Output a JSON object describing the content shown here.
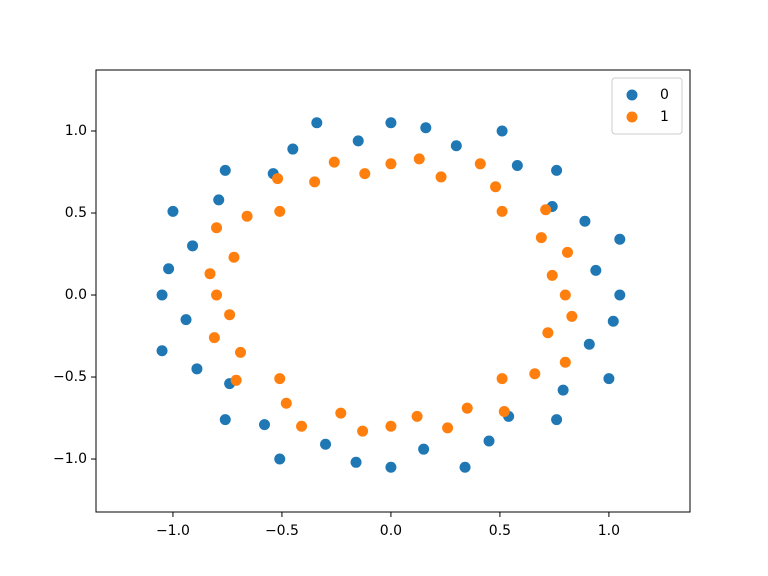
{
  "chart_data": {
    "type": "scatter",
    "xlim": [
      -1.353,
      1.372
    ],
    "ylim": [
      -1.323,
      1.372
    ],
    "xticks": [
      {
        "value": -1.0,
        "label": "−1.0"
      },
      {
        "value": -0.5,
        "label": "−0.5"
      },
      {
        "value": 0.0,
        "label": "0.0"
      },
      {
        "value": 0.5,
        "label": "0.5"
      },
      {
        "value": 1.0,
        "label": "1.0"
      }
    ],
    "yticks": [
      {
        "value": -1.0,
        "label": "−1.0"
      },
      {
        "value": -0.5,
        "label": "−0.5"
      },
      {
        "value": 0.0,
        "label": "0.0"
      },
      {
        "value": 0.5,
        "label": "0.5"
      },
      {
        "value": 1.0,
        "label": "1.0"
      }
    ],
    "grid": false,
    "legend": "upper right",
    "series": [
      {
        "name": "0",
        "color": "#1f77b4",
        "x": [
          1.05,
          0.94,
          1.05,
          0.89,
          0.74,
          0.76,
          0.58,
          0.51,
          0.3,
          0.16,
          0,
          -0.15,
          -0.34,
          -0.45,
          -0.54,
          -0.76,
          -0.79,
          -1.0,
          -0.91,
          -1.02,
          -1.05,
          -0.94,
          -1.05,
          -0.89,
          -0.74,
          -0.76,
          -0.58,
          -0.51,
          -0.3,
          -0.16,
          0,
          0.15,
          0.34,
          0.45,
          0.54,
          0.76,
          0.79,
          1.0,
          0.91,
          1.02
        ],
        "values": [
          0,
          0.15,
          0.34,
          0.45,
          0.54,
          0.76,
          0.79,
          1.0,
          0.91,
          1.02,
          1.05,
          0.94,
          1.05,
          0.89,
          0.74,
          0.76,
          0.58,
          0.51,
          0.3,
          0.16,
          0,
          -0.15,
          -0.34,
          -0.45,
          -0.54,
          -0.76,
          -0.79,
          -1.0,
          -0.91,
          -1.02,
          -1.05,
          -0.94,
          -1.05,
          -0.89,
          -0.74,
          -0.76,
          -0.58,
          -0.51,
          -0.3,
          -0.16
        ]
      },
      {
        "name": "1",
        "color": "#ff7f0e",
        "x": [
          0.8,
          0.74,
          0.81,
          0.69,
          0.71,
          0.51,
          0.48,
          0.41,
          0.23,
          0.13,
          0,
          -0.12,
          -0.26,
          -0.35,
          -0.52,
          -0.51,
          -0.66,
          -0.8,
          -0.72,
          -0.83,
          -0.8,
          -0.74,
          -0.81,
          -0.69,
          -0.71,
          -0.51,
          -0.48,
          -0.41,
          -0.23,
          -0.13,
          0,
          0.12,
          0.26,
          0.35,
          0.52,
          0.51,
          0.66,
          0.8,
          0.72,
          0.83
        ],
        "values": [
          0,
          0.12,
          0.26,
          0.35,
          0.52,
          0.51,
          0.66,
          0.8,
          0.72,
          0.83,
          0.8,
          0.74,
          0.81,
          0.69,
          0.71,
          0.51,
          0.48,
          0.41,
          0.23,
          0.13,
          0,
          -0.12,
          -0.26,
          -0.35,
          -0.52,
          -0.51,
          -0.66,
          -0.8,
          -0.72,
          -0.83,
          -0.8,
          -0.74,
          -0.81,
          -0.69,
          -0.71,
          -0.51,
          -0.48,
          -0.41,
          -0.23,
          -0.13
        ]
      }
    ]
  }
}
